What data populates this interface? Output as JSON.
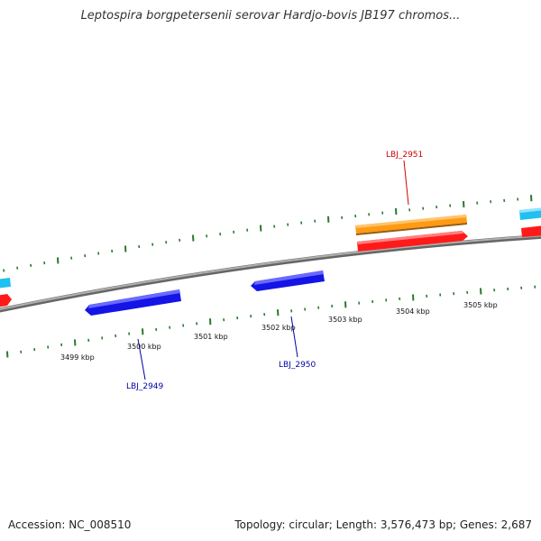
{
  "title": "Leptospira borgpetersenii serovar Hardjo-bovis JB197 chromos...",
  "footer": {
    "accession": "Accession: NC_008510",
    "summary": "Topology: circular; Length: 3,576,473 bp; Genes: 2,687"
  },
  "colors": {
    "forward_gene": "#ff1a1a",
    "reverse_gene": "#1414e6",
    "highlighted_gene": "#ff9a14",
    "other_feature": "#20c0f0",
    "tick": "#2a7a2a",
    "backbone": "#888888",
    "forward_label": "#cc0000",
    "reverse_label": "#0000aa"
  },
  "scale_labels": [
    "3499 kbp",
    "3500 kbp",
    "3501 kbp",
    "3502 kbp",
    "3503 kbp",
    "3504 kbp",
    "3505 kbp"
  ],
  "gene_labels": [
    {
      "name": "LBJ_2951",
      "strand": "forward"
    },
    {
      "name": "LBJ_2950",
      "strand": "reverse"
    },
    {
      "name": "LBJ_2949",
      "strand": "reverse"
    }
  ]
}
